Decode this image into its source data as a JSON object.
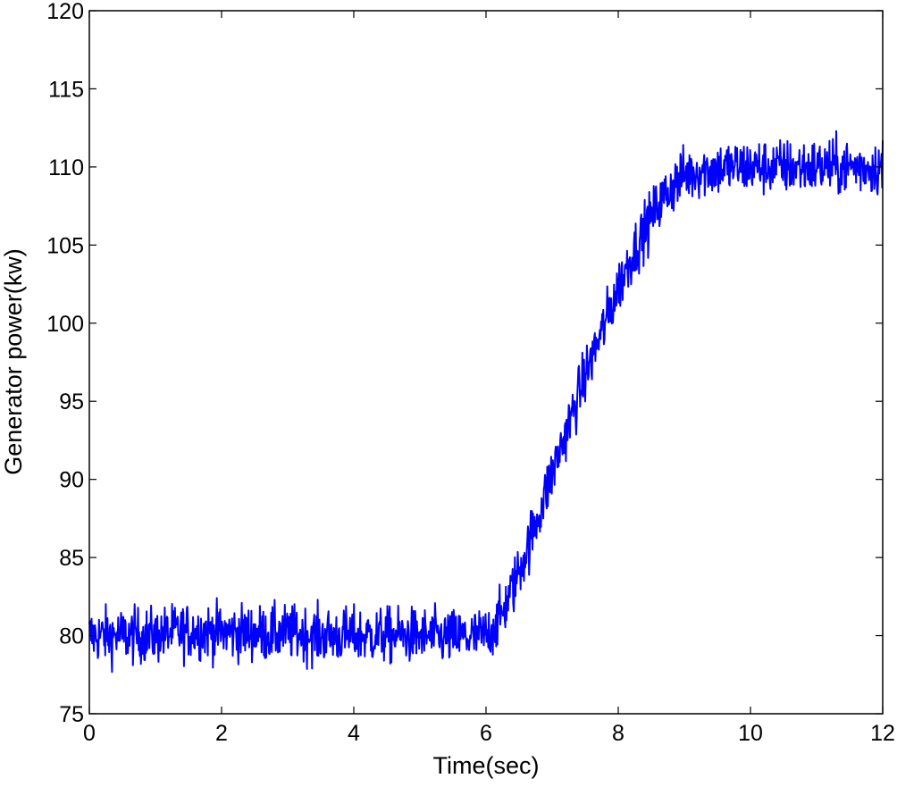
{
  "chart_data": {
    "type": "line",
    "title": "",
    "xlabel": "Time(sec)",
    "ylabel": "Generator power(kw)",
    "xlim": [
      0,
      12
    ],
    "ylim": [
      75,
      120
    ],
    "x_ticks": [
      0,
      2,
      4,
      6,
      8,
      10,
      12
    ],
    "y_ticks": [
      75,
      80,
      85,
      90,
      95,
      100,
      105,
      110,
      115,
      120
    ],
    "grid": false,
    "legend": "none",
    "line_color": "#0000ff",
    "series": [
      {
        "x": [
          0,
          0.25,
          0.5,
          0.75,
          1,
          1.25,
          1.5,
          1.75,
          2,
          2.25,
          2.5,
          2.75,
          3,
          3.25,
          3.5,
          3.75,
          4,
          4.25,
          4.5,
          4.75,
          5,
          5.25,
          5.5,
          5.75,
          6,
          6.2,
          6.4,
          6.6,
          6.8,
          7,
          7.2,
          7.4,
          7.6,
          7.8,
          8,
          8.2,
          8.4,
          8.6,
          8.8,
          9,
          9.25,
          9.5,
          9.75,
          10,
          10.25,
          10.5,
          10.75,
          11,
          11.25,
          11.5,
          11.75,
          12
        ],
        "values": [
          80,
          80,
          80,
          80,
          80,
          80.2,
          80.3,
          80.3,
          80.2,
          80.2,
          80.2,
          80.1,
          80.2,
          80.1,
          80,
          80,
          80,
          80,
          80,
          80,
          80,
          79.9,
          79.9,
          79.9,
          80,
          81,
          83,
          85.3,
          87.8,
          90.4,
          92.9,
          95.4,
          97.8,
          100,
          102.3,
          104.3,
          106,
          107.5,
          108.7,
          109.5,
          109.8,
          109.9,
          110,
          110,
          110,
          110,
          110,
          110,
          110,
          110,
          110,
          110
        ],
        "noise_amplitude": 1.6
      }
    ]
  }
}
